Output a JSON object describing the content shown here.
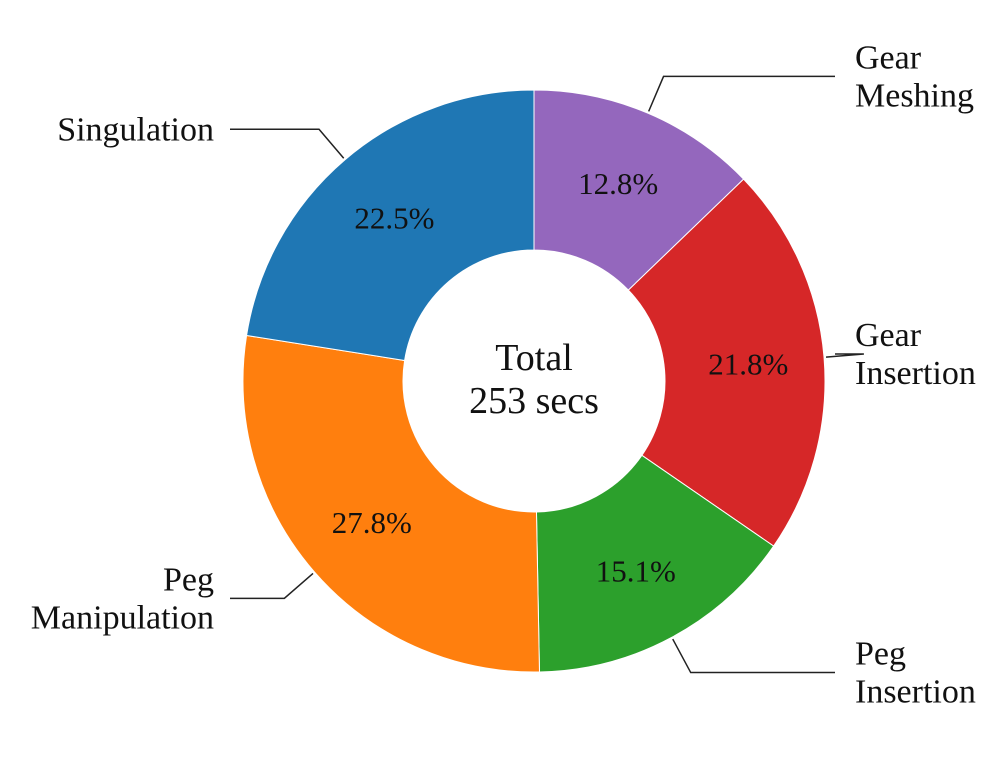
{
  "chart_data": {
    "type": "pie",
    "variant": "donut",
    "direction": "clockwise",
    "start": "top",
    "center_text": [
      "Total",
      "253 secs"
    ],
    "slices": [
      {
        "label": [
          "Gear",
          "Meshing"
        ],
        "value": 12.8,
        "value_label": "12.8%",
        "color": "#9467bd",
        "label_side": "right"
      },
      {
        "label": [
          "Gear",
          "Insertion"
        ],
        "value": 21.8,
        "value_label": "21.8%",
        "color": "#d62728",
        "label_side": "right"
      },
      {
        "label": [
          "Peg",
          "Insertion"
        ],
        "value": 15.1,
        "value_label": "15.1%",
        "color": "#2ca02c",
        "label_side": "right"
      },
      {
        "label": [
          "Peg",
          "Manipulation"
        ],
        "value": 27.8,
        "value_label": "27.8%",
        "color": "#ff7f0e",
        "label_side": "left"
      },
      {
        "label": [
          "Singulation"
        ],
        "value": 22.5,
        "value_label": "22.5%",
        "color": "#1f77b4",
        "label_side": "left"
      }
    ]
  }
}
